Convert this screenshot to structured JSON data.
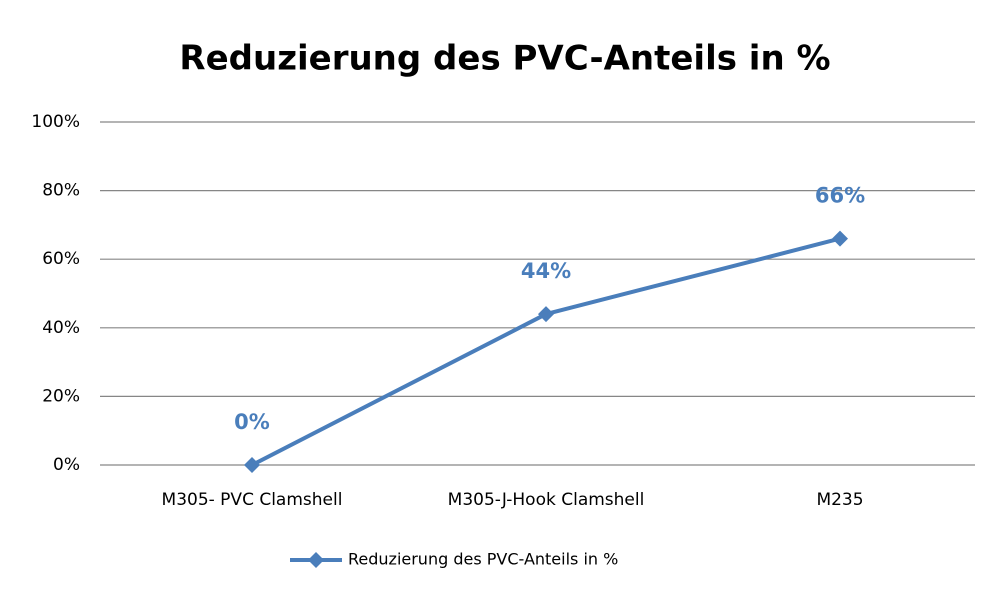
{
  "chart_data": {
    "type": "line",
    "title": "Reduzierung des PVC-Anteils in %",
    "categories": [
      "M305- PVC Clamshell",
      "M305-J-Hook Clamshell",
      "M235"
    ],
    "series": [
      {
        "name": "Reduzierung des PVC-Anteils in %",
        "color": "#4a7ebb",
        "values": [
          0,
          44,
          66
        ],
        "value_labels": [
          "0%",
          "44%",
          "66%"
        ]
      }
    ],
    "ylim": [
      0,
      100
    ],
    "yticks": [
      {
        "value": 0,
        "label": "0%"
      },
      {
        "value": 20,
        "label": "20%"
      },
      {
        "value": 40,
        "label": "40%"
      },
      {
        "value": 60,
        "label": "60%"
      },
      {
        "value": 80,
        "label": "80%"
      },
      {
        "value": 100,
        "label": "100%"
      }
    ],
    "grid": true,
    "legend": "bottom"
  }
}
